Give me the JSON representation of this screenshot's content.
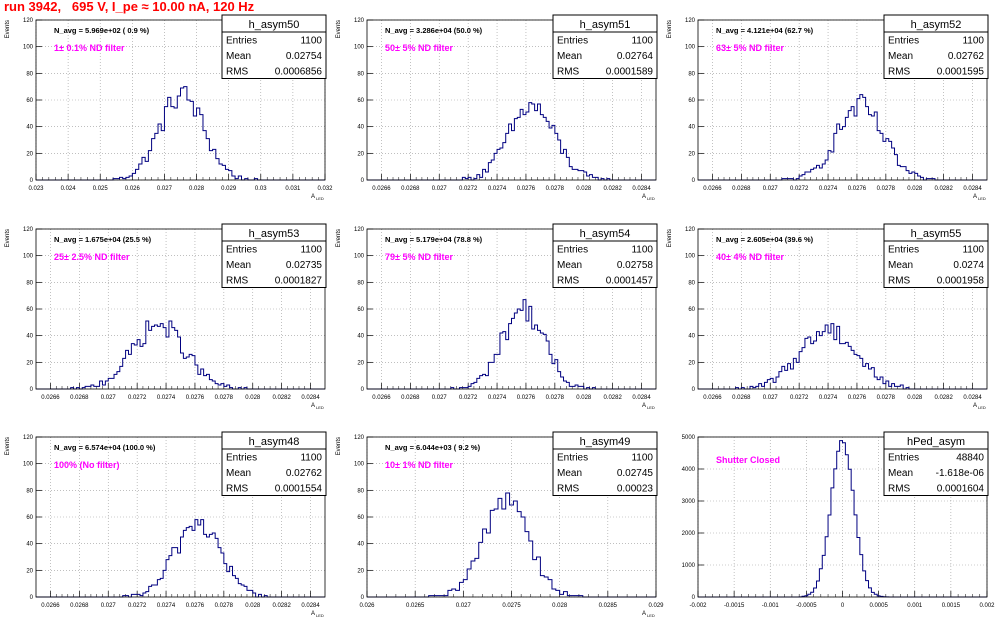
{
  "page": {
    "title": "run 3942,   695 V, I_pe ≈ 10.00 nA, 120 Hz"
  },
  "colors": {
    "histogram": "#000080",
    "filter_text": "#ff00ff",
    "title": "#ff0000",
    "grid": "#999999"
  },
  "chart_data": [
    {
      "type": "histogram",
      "name": "h_asym50",
      "ylabel": "Events",
      "xlabel": "A",
      "xlabel_sub": "LED",
      "navg": "N_avg = 5.969e+02 ( 0.9 %)",
      "filter": "1± 0.1% ND filter",
      "stats": [
        [
          "Entries",
          "1100"
        ],
        [
          "Mean",
          "0.02754"
        ],
        [
          "RMS",
          "0.0006856"
        ]
      ],
      "xlim": [
        0.023,
        0.032
      ],
      "ylim": [
        0,
        120
      ],
      "log": false,
      "xticks": [
        "0.023",
        "0.024",
        "0.025",
        "0.026",
        "0.027",
        "0.028",
        "0.029",
        "0.03",
        "0.031",
        "0.032"
      ],
      "yticks": [
        0,
        20,
        40,
        60,
        80,
        100,
        120
      ],
      "mean": 0.02754,
      "sigma": 0.0006856,
      "entries": 1100,
      "binw": 0.0001
    },
    {
      "type": "histogram",
      "name": "h_asym51",
      "ylabel": "Events",
      "xlabel": "A",
      "xlabel_sub": "LED",
      "navg": "N_avg = 3.286e+04 (50.0 %)",
      "filter": "50± 5% ND filter",
      "stats": [
        [
          "Entries",
          "1100"
        ],
        [
          "Mean",
          "0.02764"
        ],
        [
          "RMS",
          "0.0001589"
        ]
      ],
      "xlim": [
        0.0265,
        0.0285
      ],
      "ylim": [
        0,
        120
      ],
      "log": false,
      "xticks": [
        "0.0266",
        "0.0268",
        "0.027",
        "0.0272",
        "0.0274",
        "0.0276",
        "0.0278",
        "0.028",
        "0.0282",
        "0.0284"
      ],
      "yticks": [
        0,
        20,
        40,
        60,
        80,
        100,
        120
      ],
      "mean": 0.02764,
      "sigma": 0.0001589,
      "entries": 1100,
      "binw": 2e-05
    },
    {
      "type": "histogram",
      "name": "h_asym52",
      "ylabel": "Events",
      "xlabel": "A",
      "xlabel_sub": "LED",
      "navg": "N_avg = 4.121e+04 (62.7 %)",
      "filter": "63± 5% ND filter",
      "stats": [
        [
          "Entries",
          "1100"
        ],
        [
          "Mean",
          "0.02762"
        ],
        [
          "RMS",
          "0.0001595"
        ]
      ],
      "xlim": [
        0.0265,
        0.0285
      ],
      "ylim": [
        0,
        120
      ],
      "log": false,
      "xticks": [
        "0.0266",
        "0.0268",
        "0.027",
        "0.0272",
        "0.0274",
        "0.0276",
        "0.0278",
        "0.028",
        "0.0282",
        "0.0284"
      ],
      "yticks": [
        0,
        20,
        40,
        60,
        80,
        100,
        120
      ],
      "mean": 0.02762,
      "sigma": 0.0001595,
      "entries": 1100,
      "binw": 2e-05
    },
    {
      "type": "histogram",
      "name": "h_asym53",
      "ylabel": "Events",
      "xlabel": "A",
      "xlabel_sub": "LED",
      "navg": "N_avg = 1.675e+04 (25.5 %)",
      "filter": "25± 2.5% ND filter",
      "stats": [
        [
          "Entries",
          "1100"
        ],
        [
          "Mean",
          "0.02735"
        ],
        [
          "RMS",
          "0.0001827"
        ]
      ],
      "xlim": [
        0.0265,
        0.0285
      ],
      "ylim": [
        0,
        120
      ],
      "log": false,
      "xticks": [
        "0.0266",
        "0.0268",
        "0.027",
        "0.0272",
        "0.0274",
        "0.0276",
        "0.0278",
        "0.028",
        "0.0282",
        "0.0284"
      ],
      "yticks": [
        0,
        20,
        40,
        60,
        80,
        100,
        120
      ],
      "mean": 0.02735,
      "sigma": 0.0001827,
      "entries": 1100,
      "binw": 2e-05
    },
    {
      "type": "histogram",
      "name": "h_asym54",
      "ylabel": "Events",
      "xlabel": "A",
      "xlabel_sub": "LED",
      "navg": "N_avg = 5.179e+04 (78.8 %)",
      "filter": "79± 5% ND filter",
      "stats": [
        [
          "Entries",
          "1100"
        ],
        [
          "Mean",
          "0.02758"
        ],
        [
          "RMS",
          "0.0001457"
        ]
      ],
      "xlim": [
        0.0265,
        0.0285
      ],
      "ylim": [
        0,
        120
      ],
      "log": false,
      "xticks": [
        "0.0266",
        "0.0268",
        "0.027",
        "0.0272",
        "0.0274",
        "0.0276",
        "0.0278",
        "0.028",
        "0.0282",
        "0.0284"
      ],
      "yticks": [
        0,
        20,
        40,
        60,
        80,
        100,
        120
      ],
      "mean": 0.02758,
      "sigma": 0.0001457,
      "entries": 1100,
      "binw": 2e-05
    },
    {
      "type": "histogram",
      "name": "h_asym55",
      "ylabel": "Events",
      "xlabel": "A",
      "xlabel_sub": "LED",
      "navg": "N_avg = 2.605e+04 (39.6 %)",
      "filter": "40± 4% ND filter",
      "stats": [
        [
          "Entries",
          "1100"
        ],
        [
          "Mean",
          "0.0274"
        ],
        [
          "RMS",
          "0.0001958"
        ]
      ],
      "xlim": [
        0.0265,
        0.0285
      ],
      "ylim": [
        0,
        120
      ],
      "log": false,
      "xticks": [
        "0.0266",
        "0.0268",
        "0.027",
        "0.0272",
        "0.0274",
        "0.0276",
        "0.0278",
        "0.028",
        "0.0282",
        "0.0284"
      ],
      "yticks": [
        0,
        20,
        40,
        60,
        80,
        100,
        120
      ],
      "mean": 0.0274,
      "sigma": 0.0001958,
      "entries": 1100,
      "binw": 2e-05
    },
    {
      "type": "histogram",
      "name": "h_asym48",
      "ylabel": "Events",
      "xlabel": "A",
      "xlabel_sub": "LED",
      "navg": "N_avg = 6.574e+04 (100.0 %)",
      "filter": "100% (No filter)",
      "stats": [
        [
          "Entries",
          "1100"
        ],
        [
          "Mean",
          "0.02762"
        ],
        [
          "RMS",
          "0.0001554"
        ]
      ],
      "xlim": [
        0.0265,
        0.0285
      ],
      "ylim": [
        0,
        120
      ],
      "log": false,
      "xticks": [
        "0.0266",
        "0.0268",
        "0.027",
        "0.0272",
        "0.0274",
        "0.0276",
        "0.0278",
        "0.028",
        "0.0282",
        "0.0284"
      ],
      "yticks": [
        0,
        20,
        40,
        60,
        80,
        100,
        120
      ],
      "mean": 0.02762,
      "sigma": 0.0001554,
      "entries": 1100,
      "binw": 2e-05
    },
    {
      "type": "histogram",
      "name": "h_asym49",
      "ylabel": "Events",
      "xlabel": "A",
      "xlabel_sub": "LED",
      "navg": "N_avg = 6.044e+03 ( 9.2 %)",
      "filter": "10± 1% ND filter",
      "stats": [
        [
          "Entries",
          "1100"
        ],
        [
          "Mean",
          "0.02745"
        ],
        [
          "RMS",
          "0.00023"
        ]
      ],
      "xlim": [
        0.026,
        0.029
      ],
      "ylim": [
        0,
        120
      ],
      "log": false,
      "xticks": [
        "0.026",
        "0.0265",
        "0.027",
        "0.0275",
        "0.028",
        "0.0285",
        "0.029"
      ],
      "yticks": [
        0,
        20,
        40,
        60,
        80,
        100,
        120
      ],
      "mean": 0.02745,
      "sigma": 0.00023,
      "entries": 1100,
      "binw": 4e-05
    },
    {
      "type": "histogram",
      "name": "hPed_asym",
      "ylabel": "",
      "xlabel": "",
      "xlabel_sub": "",
      "navg": "",
      "filter": "Shutter Closed",
      "stats": [
        [
          "Entries",
          "48840"
        ],
        [
          "Mean",
          "-1.618e-06"
        ],
        [
          "RMS",
          "0.0001604"
        ]
      ],
      "xlim": [
        -0.002,
        0.002
      ],
      "ylim": [
        0,
        5000
      ],
      "log": false,
      "xticks": [
        "-0.002",
        "-0.0015",
        "-0.001",
        "-0.0005",
        "0",
        "0.0005",
        "0.001",
        "0.0015",
        "0.002"
      ],
      "yticks": [
        0,
        1000,
        2000,
        3000,
        4000,
        5000
      ],
      "mean": -1.618e-06,
      "sigma": 0.0001604,
      "entries": 48840,
      "binw": 4e-05
    }
  ]
}
